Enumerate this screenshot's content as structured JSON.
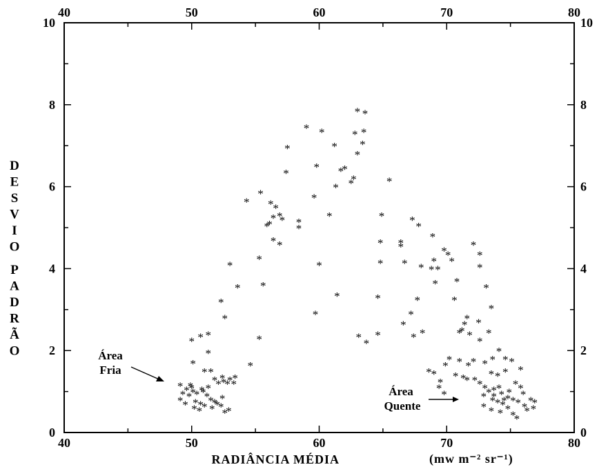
{
  "chart_data": {
    "type": "scatter",
    "title": "",
    "xlabel": "RADIÂNCIA MÉDIA",
    "xunit": "(mw m⁻² sr⁻¹)",
    "ylabel": "DESVIO PADRÃO",
    "xlim": [
      40,
      80
    ],
    "ylim": [
      0,
      10
    ],
    "xticks": [
      "40",
      "50",
      "60",
      "70",
      "80"
    ],
    "yticks": [
      "0",
      "2",
      "4",
      "6",
      "8",
      "10"
    ],
    "marker": "*",
    "grid": false,
    "annotations": [
      {
        "id": "fria",
        "lines": [
          "Área",
          "Fria"
        ],
        "points_to": [
          48.5,
          1.2
        ]
      },
      {
        "id": "quente",
        "lines": [
          "Área",
          "Quente"
        ],
        "points_to": [
          68.8,
          0.8
        ]
      }
    ],
    "points": [
      [
        63.0,
        7.85
      ],
      [
        63.6,
        7.8
      ],
      [
        59.0,
        7.45
      ],
      [
        60.2,
        7.35
      ],
      [
        62.8,
        7.3
      ],
      [
        63.5,
        7.35
      ],
      [
        61.2,
        7.0
      ],
      [
        63.4,
        7.05
      ],
      [
        57.5,
        6.95
      ],
      [
        63.0,
        6.8
      ],
      [
        59.8,
        6.5
      ],
      [
        61.7,
        6.4
      ],
      [
        62.0,
        6.45
      ],
      [
        57.4,
        6.35
      ],
      [
        62.5,
        6.1
      ],
      [
        62.7,
        6.2
      ],
      [
        61.3,
        6.0
      ],
      [
        65.5,
        6.15
      ],
      [
        55.4,
        5.85
      ],
      [
        59.6,
        5.75
      ],
      [
        54.3,
        5.65
      ],
      [
        56.2,
        5.6
      ],
      [
        56.6,
        5.5
      ],
      [
        56.4,
        5.25
      ],
      [
        56.9,
        5.3
      ],
      [
        57.1,
        5.2
      ],
      [
        58.4,
        5.15
      ],
      [
        58.4,
        5.0
      ],
      [
        55.9,
        5.05
      ],
      [
        56.1,
        5.1
      ],
      [
        60.8,
        5.3
      ],
      [
        64.9,
        5.3
      ],
      [
        56.4,
        4.7
      ],
      [
        56.9,
        4.6
      ],
      [
        55.3,
        4.25
      ],
      [
        53.0,
        4.1
      ],
      [
        53.6,
        3.55
      ],
      [
        55.6,
        3.6
      ],
      [
        52.3,
        3.2
      ],
      [
        52.6,
        2.8
      ],
      [
        60.0,
        4.1
      ],
      [
        61.4,
        3.35
      ],
      [
        59.7,
        2.9
      ],
      [
        64.8,
        4.65
      ],
      [
        64.8,
        4.15
      ],
      [
        64.6,
        3.3
      ],
      [
        50.0,
        2.25
      ],
      [
        50.7,
        2.35
      ],
      [
        51.3,
        2.4
      ],
      [
        50.1,
        1.7
      ],
      [
        51.3,
        1.95
      ],
      [
        55.3,
        2.3
      ],
      [
        54.6,
        1.65
      ],
      [
        63.1,
        2.35
      ],
      [
        63.7,
        2.2
      ],
      [
        64.6,
        2.4
      ],
      [
        67.3,
        5.2
      ],
      [
        67.8,
        5.05
      ],
      [
        66.4,
        4.65
      ],
      [
        66.4,
        4.55
      ],
      [
        66.7,
        4.15
      ],
      [
        68.9,
        4.8
      ],
      [
        69.8,
        4.45
      ],
      [
        70.1,
        4.35
      ],
      [
        70.4,
        4.2
      ],
      [
        69.0,
        4.2
      ],
      [
        68.8,
        4.0
      ],
      [
        69.3,
        4.0
      ],
      [
        68.0,
        4.05
      ],
      [
        69.1,
        3.65
      ],
      [
        67.7,
        3.25
      ],
      [
        67.2,
        2.9
      ],
      [
        66.6,
        2.65
      ],
      [
        67.4,
        2.35
      ],
      [
        68.1,
        2.45
      ],
      [
        70.8,
        3.7
      ],
      [
        70.6,
        3.25
      ],
      [
        72.1,
        4.6
      ],
      [
        72.6,
        4.35
      ],
      [
        72.6,
        4.05
      ],
      [
        73.1,
        3.55
      ],
      [
        73.5,
        3.05
      ],
      [
        71.6,
        2.8
      ],
      [
        71.4,
        2.65
      ],
      [
        72.5,
        2.7
      ],
      [
        71.2,
        2.5
      ],
      [
        71.8,
        2.4
      ],
      [
        73.3,
        2.45
      ],
      [
        72.6,
        2.25
      ],
      [
        71.0,
        2.45
      ],
      [
        70.2,
        1.8
      ],
      [
        71.0,
        1.75
      ],
      [
        71.7,
        1.65
      ],
      [
        72.1,
        1.75
      ],
      [
        73.0,
        1.7
      ],
      [
        73.6,
        1.8
      ],
      [
        74.1,
        2.0
      ],
      [
        74.6,
        1.8
      ],
      [
        75.1,
        1.75
      ],
      [
        69.9,
        1.65
      ],
      [
        70.7,
        1.4
      ],
      [
        71.3,
        1.35
      ],
      [
        71.6,
        1.3
      ],
      [
        72.2,
        1.3
      ],
      [
        73.5,
        1.45
      ],
      [
        74.0,
        1.4
      ],
      [
        74.6,
        1.5
      ],
      [
        75.8,
        1.55
      ],
      [
        69.0,
        1.45
      ],
      [
        68.6,
        1.5
      ],
      [
        69.5,
        1.25
      ],
      [
        69.4,
        1.1
      ],
      [
        69.8,
        0.95
      ],
      [
        72.6,
        1.2
      ],
      [
        73.0,
        1.1
      ],
      [
        73.3,
        1.0
      ],
      [
        73.7,
        1.05
      ],
      [
        74.1,
        1.1
      ],
      [
        74.3,
        0.95
      ],
      [
        74.9,
        1.0
      ],
      [
        75.4,
        1.2
      ],
      [
        75.8,
        1.1
      ],
      [
        76.0,
        0.95
      ],
      [
        72.9,
        0.9
      ],
      [
        73.6,
        0.8
      ],
      [
        74.0,
        0.75
      ],
      [
        74.4,
        0.7
      ],
      [
        74.8,
        0.85
      ],
      [
        75.2,
        0.8
      ],
      [
        75.6,
        0.75
      ],
      [
        76.1,
        0.65
      ],
      [
        76.6,
        0.8
      ],
      [
        76.9,
        0.75
      ],
      [
        72.9,
        0.65
      ],
      [
        73.5,
        0.55
      ],
      [
        74.2,
        0.5
      ],
      [
        74.8,
        0.6
      ],
      [
        75.2,
        0.45
      ],
      [
        75.5,
        0.35
      ],
      [
        76.3,
        0.55
      ],
      [
        76.8,
        0.6
      ],
      [
        73.7,
        0.9
      ],
      [
        74.5,
        0.8
      ],
      [
        49.1,
        1.15
      ],
      [
        49.6,
        1.05
      ],
      [
        49.9,
        1.15
      ],
      [
        49.3,
        0.95
      ],
      [
        49.8,
        0.9
      ],
      [
        49.1,
        0.8
      ],
      [
        49.5,
        0.7
      ],
      [
        50.1,
        1.0
      ],
      [
        50.4,
        0.95
      ],
      [
        50.9,
        1.0
      ],
      [
        51.2,
        0.9
      ],
      [
        51.5,
        0.8
      ],
      [
        50.3,
        0.75
      ],
      [
        50.7,
        0.7
      ],
      [
        51.0,
        0.65
      ],
      [
        51.6,
        0.6
      ],
      [
        52.0,
        0.7
      ],
      [
        52.3,
        0.65
      ],
      [
        50.2,
        0.6
      ],
      [
        50.6,
        0.55
      ],
      [
        52.6,
        0.5
      ],
      [
        52.9,
        0.55
      ],
      [
        52.4,
        0.85
      ],
      [
        51.8,
        0.75
      ],
      [
        51.0,
        1.5
      ],
      [
        51.5,
        1.5
      ],
      [
        51.8,
        1.3
      ],
      [
        52.1,
        1.2
      ],
      [
        52.4,
        1.35
      ],
      [
        52.5,
        1.25
      ],
      [
        53.0,
        1.3
      ],
      [
        53.3,
        1.2
      ],
      [
        53.4,
        1.35
      ],
      [
        52.8,
        1.2
      ],
      [
        51.3,
        1.1
      ],
      [
        50.8,
        1.05
      ],
      [
        50.0,
        1.1
      ]
    ]
  }
}
